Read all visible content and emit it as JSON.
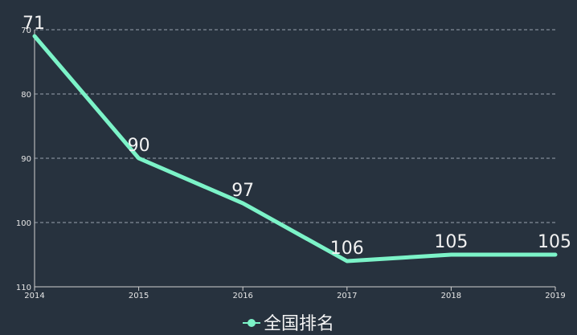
{
  "chart_data": {
    "type": "line",
    "title": "",
    "xlabel": "",
    "ylabel": "",
    "categories": [
      "2014",
      "2015",
      "2016",
      "2017",
      "2018",
      "2019"
    ],
    "series": [
      {
        "name": "全国排名",
        "values": [
          71,
          90,
          97,
          106,
          105,
          105
        ],
        "labels": [
          "71",
          "90",
          "97",
          "106",
          "105",
          "105"
        ]
      }
    ],
    "y_ticks": [
      70,
      80,
      90,
      100,
      110
    ],
    "y_tick_labels": [
      "70",
      "80",
      "90",
      "100",
      "110"
    ],
    "ylim": [
      70,
      110
    ],
    "y_inverted": true,
    "grid": true,
    "grid_style": "dashed",
    "legend_position": "bottom-center",
    "colors": {
      "background": "#27323e",
      "line": "#7cf3c8",
      "text": "#f2f2f2",
      "axis": "#d0d0d0",
      "grid": "#9aa3ad"
    }
  }
}
